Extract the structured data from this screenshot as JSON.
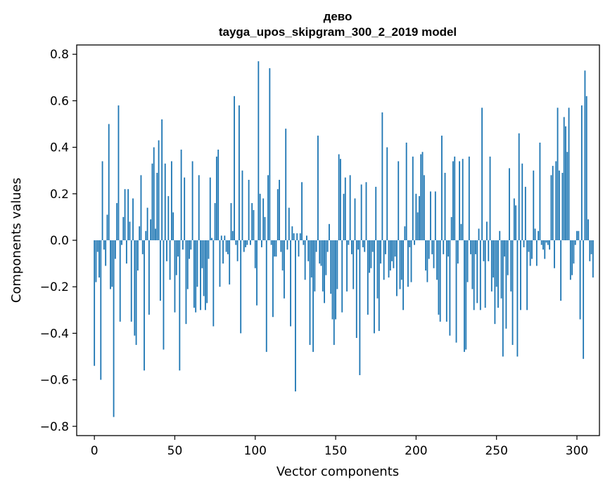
{
  "chart_data": {
    "type": "bar",
    "title_line1": "дево",
    "title_line2": "tayga_upos_skipgram_300_2_2019 model",
    "xlabel": "Vector components",
    "ylabel": "Components values",
    "xlim": [
      -11,
      314
    ],
    "ylim": [
      -0.84,
      0.84
    ],
    "xticks": [
      0,
      50,
      100,
      150,
      200,
      250,
      300
    ],
    "yticks": [
      -0.8,
      -0.6,
      -0.4,
      -0.2,
      0.0,
      0.2,
      0.4,
      0.6,
      0.8
    ],
    "ytick_labels": [
      "−0.8",
      "−0.6",
      "−0.4",
      "−0.2",
      "0.0",
      "0.2",
      "0.4",
      "0.6",
      "0.8"
    ],
    "bar_color": "#1f77b4",
    "values": [
      -0.54,
      -0.18,
      -0.05,
      -0.16,
      -0.6,
      0.34,
      -0.04,
      -0.11,
      0.11,
      0.5,
      -0.21,
      -0.2,
      -0.76,
      -0.08,
      0.16,
      0.58,
      -0.35,
      -0.02,
      0.1,
      0.22,
      -0.1,
      0.22,
      0.08,
      -0.35,
      0.18,
      -0.41,
      -0.45,
      -0.13,
      0.06,
      0.28,
      -0.06,
      -0.56,
      0.04,
      0.14,
      -0.32,
      0.09,
      0.33,
      0.4,
      0.05,
      0.29,
      0.43,
      -0.26,
      0.52,
      -0.47,
      0.33,
      -0.09,
      0.19,
      -0.17,
      0.34,
      0.12,
      -0.31,
      -0.15,
      -0.07,
      -0.56,
      0.39,
      -0.04,
      0.27,
      -0.36,
      -0.21,
      -0.08,
      -0.04,
      0.34,
      -0.29,
      -0.31,
      -0.2,
      0.28,
      -0.3,
      -0.12,
      -0.24,
      -0.3,
      -0.27,
      -0.08,
      0.27,
      0.01,
      -0.37,
      0.16,
      0.36,
      0.39,
      -0.2,
      0.02,
      -0.1,
      0.02,
      -0.05,
      -0.06,
      -0.19,
      0.16,
      0.04,
      0.62,
      -0.02,
      -0.09,
      0.58,
      -0.4,
      0.3,
      -0.05,
      -0.03,
      -0.02,
      0.26,
      -0.02,
      0.16,
      0.13,
      -0.12,
      -0.28,
      0.77,
      0.2,
      -0.03,
      0.18,
      0.1,
      -0.48,
      0.28,
      0.74,
      -0.02,
      -0.33,
      -0.07,
      -0.07,
      0.22,
      0.26,
      -0.05,
      -0.13,
      -0.25,
      0.48,
      -0.04,
      0.14,
      -0.37,
      0.06,
      0.03,
      -0.65,
      0.03,
      -0.07,
      0.03,
      0.25,
      -0.02,
      -0.17,
      0.02,
      -0.09,
      -0.45,
      -0.16,
      -0.48,
      -0.22,
      -0.05,
      0.45,
      -0.1,
      -0.11,
      -0.22,
      -0.27,
      -0.15,
      -0.05,
      0.07,
      -0.23,
      -0.34,
      -0.45,
      -0.34,
      -0.21,
      0.37,
      0.35,
      -0.31,
      0.2,
      0.27,
      -0.22,
      -0.02,
      0.28,
      -0.06,
      -0.21,
      0.18,
      -0.42,
      -0.04,
      -0.58,
      0.24,
      -0.03,
      -0.05,
      0.25,
      -0.32,
      -0.14,
      -0.12,
      -0.05,
      -0.4,
      0.23,
      -0.25,
      -0.39,
      -0.1,
      0.55,
      -0.17,
      -0.06,
      0.4,
      -0.16,
      -0.13,
      -0.09,
      -0.12,
      -0.07,
      -0.24,
      0.34,
      -0.21,
      -0.17,
      -0.3,
      0.06,
      0.42,
      -0.2,
      -0.03,
      -0.18,
      0.36,
      -0.02,
      0.2,
      0.12,
      0.19,
      0.37,
      0.38,
      0.28,
      -0.13,
      -0.18,
      -0.08,
      0.21,
      -0.06,
      -0.12,
      0.21,
      -0.17,
      -0.32,
      -0.35,
      0.45,
      -0.06,
      0.29,
      -0.35,
      -0.07,
      -0.41,
      0.1,
      0.34,
      0.36,
      -0.44,
      -0.1,
      0.34,
      0.07,
      0.35,
      -0.48,
      -0.47,
      -0.18,
      0.36,
      -0.06,
      -0.21,
      -0.3,
      -0.06,
      -0.27,
      0.05,
      -0.3,
      0.57,
      -0.09,
      -0.29,
      0.08,
      -0.09,
      0.36,
      -0.22,
      -0.16,
      -0.36,
      -0.2,
      -0.29,
      0.04,
      -0.25,
      -0.5,
      -0.07,
      -0.38,
      -0.15,
      0.31,
      -0.22,
      -0.45,
      0.18,
      0.15,
      -0.5,
      0.46,
      -0.3,
      0.33,
      -0.03,
      0.23,
      -0.3,
      -0.05,
      -0.11,
      -0.08,
      0.3,
      0.05,
      -0.11,
      0.04,
      0.42,
      -0.02,
      -0.04,
      -0.08,
      -0.01,
      -0.02,
      -0.04,
      0.28,
      0.32,
      -0.12,
      0.34,
      0.57,
      0.3,
      -0.26,
      0.29,
      0.53,
      0.49,
      0.38,
      0.57,
      -0.17,
      -0.15,
      -0.1,
      -0.02,
      0.04,
      0.04,
      -0.34,
      0.58,
      -0.51,
      0.73,
      0.62,
      0.09,
      -0.09,
      -0.06,
      -0.16
    ]
  }
}
